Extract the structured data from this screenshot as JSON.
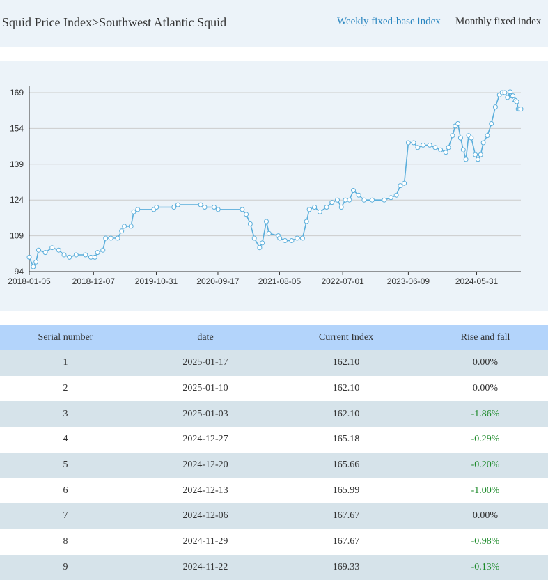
{
  "header": {
    "breadcrumb": "Squid Price Index>Southwest Atlantic Squid",
    "tabs": [
      {
        "label": "Weekly fixed-base index",
        "active": true
      },
      {
        "label": "Monthly fixed index",
        "active": false
      }
    ]
  },
  "colors": {
    "line": "#5aaedb",
    "active_tab": "#2a86c0",
    "negative": "#1d8a2a",
    "table_header": "#b3d4fb",
    "row_alt": "#d6e3ea"
  },
  "chart_data": {
    "type": "line",
    "x_start": "2018-01-05",
    "x_end": "2025-01-17",
    "x_tick_labels": [
      "2018-01-05",
      "2018-12-07",
      "2019-10-31",
      "2020-09-17",
      "2021-08-05",
      "2022-07-01",
      "2023-06-09",
      "2024-05-31"
    ],
    "y_tick_labels": [
      "94",
      "109",
      "124",
      "139",
      "154",
      "169"
    ],
    "ylim": [
      94,
      169
    ],
    "grid": true,
    "marker": "hollow-circle",
    "points": [
      [
        "2018-01-05",
        100
      ],
      [
        "2018-01-26",
        96
      ],
      [
        "2018-02-09",
        98
      ],
      [
        "2018-02-23",
        103
      ],
      [
        "2018-03-30",
        102
      ],
      [
        "2018-05-04",
        104
      ],
      [
        "2018-06-08",
        103
      ],
      [
        "2018-07-06",
        101
      ],
      [
        "2018-08-03",
        100
      ],
      [
        "2018-09-07",
        101
      ],
      [
        "2018-10-26",
        101
      ],
      [
        "2018-11-23",
        100
      ],
      [
        "2018-12-14",
        100
      ],
      [
        "2018-12-28",
        102
      ],
      [
        "2019-01-25",
        103
      ],
      [
        "2019-02-08",
        108
      ],
      [
        "2019-03-08",
        108
      ],
      [
        "2019-04-12",
        108
      ],
      [
        "2019-05-03",
        111
      ],
      [
        "2019-05-17",
        113
      ],
      [
        "2019-06-21",
        113
      ],
      [
        "2019-07-05",
        119
      ],
      [
        "2019-07-26",
        120
      ],
      [
        "2019-10-18",
        120
      ],
      [
        "2019-11-01",
        121
      ],
      [
        "2020-01-31",
        121
      ],
      [
        "2020-02-21",
        122
      ],
      [
        "2020-06-19",
        122
      ],
      [
        "2020-07-10",
        121
      ],
      [
        "2020-08-28",
        121
      ],
      [
        "2020-09-18",
        120
      ],
      [
        "2021-01-22",
        120
      ],
      [
        "2021-02-12",
        118
      ],
      [
        "2021-03-05",
        114
      ],
      [
        "2021-03-26",
        108
      ],
      [
        "2021-04-23",
        104
      ],
      [
        "2021-05-07",
        106
      ],
      [
        "2021-05-28",
        115
      ],
      [
        "2021-06-11",
        110
      ],
      [
        "2021-07-30",
        109
      ],
      [
        "2021-08-06",
        108
      ],
      [
        "2021-09-03",
        107
      ],
      [
        "2021-10-08",
        107
      ],
      [
        "2021-11-05",
        108
      ],
      [
        "2021-12-03",
        108
      ],
      [
        "2021-12-24",
        115
      ],
      [
        "2022-01-07",
        120
      ],
      [
        "2022-02-04",
        121
      ],
      [
        "2022-03-04",
        119
      ],
      [
        "2022-04-08",
        121
      ],
      [
        "2022-05-06",
        123
      ],
      [
        "2022-06-03",
        124
      ],
      [
        "2022-06-24",
        121
      ],
      [
        "2022-07-15",
        124
      ],
      [
        "2022-08-05",
        124
      ],
      [
        "2022-08-26",
        128
      ],
      [
        "2022-09-23",
        126
      ],
      [
        "2022-10-21",
        124
      ],
      [
        "2022-12-02",
        124
      ],
      [
        "2023-02-03",
        124
      ],
      [
        "2023-03-10",
        125
      ],
      [
        "2023-04-07",
        126
      ],
      [
        "2023-04-28",
        130
      ],
      [
        "2023-05-19",
        131
      ],
      [
        "2023-06-09",
        148
      ],
      [
        "2023-07-07",
        148
      ],
      [
        "2023-07-28",
        146
      ],
      [
        "2023-08-25",
        147
      ],
      [
        "2023-09-29",
        147
      ],
      [
        "2023-10-27",
        146
      ],
      [
        "2023-11-24",
        145
      ],
      [
        "2023-12-22",
        144
      ],
      [
        "2024-01-05",
        146
      ],
      [
        "2024-01-26",
        151
      ],
      [
        "2024-02-09",
        155
      ],
      [
        "2024-02-23",
        156
      ],
      [
        "2024-03-08",
        150
      ],
      [
        "2024-03-22",
        145
      ],
      [
        "2024-04-05",
        141
      ],
      [
        "2024-04-19",
        151
      ],
      [
        "2024-05-03",
        150
      ],
      [
        "2024-05-24",
        143
      ],
      [
        "2024-06-07",
        141
      ],
      [
        "2024-06-21",
        143
      ],
      [
        "2024-07-05",
        148
      ],
      [
        "2024-07-26",
        151
      ],
      [
        "2024-08-16",
        156
      ],
      [
        "2024-09-06",
        163
      ],
      [
        "2024-09-27",
        168
      ],
      [
        "2024-10-11",
        169
      ],
      [
        "2024-10-25",
        169
      ],
      [
        "2024-11-08",
        167
      ],
      [
        "2024-11-22",
        169.33
      ],
      [
        "2024-11-29",
        167.67
      ],
      [
        "2024-12-06",
        167.67
      ],
      [
        "2024-12-13",
        165.99
      ],
      [
        "2024-12-20",
        165.66
      ],
      [
        "2024-12-27",
        165.18
      ],
      [
        "2025-01-03",
        162.1
      ],
      [
        "2025-01-10",
        162.1
      ],
      [
        "2025-01-17",
        162.1
      ]
    ]
  },
  "table": {
    "headers": [
      "Serial number",
      "date",
      "Current Index",
      "Rise and fall"
    ],
    "rows": [
      {
        "serial": "1",
        "date": "2025-01-17",
        "index": "162.10",
        "change": "0.00%",
        "trend": "flat"
      },
      {
        "serial": "2",
        "date": "2025-01-10",
        "index": "162.10",
        "change": "0.00%",
        "trend": "flat"
      },
      {
        "serial": "3",
        "date": "2025-01-03",
        "index": "162.10",
        "change": "-1.86%",
        "trend": "down"
      },
      {
        "serial": "4",
        "date": "2024-12-27",
        "index": "165.18",
        "change": "-0.29%",
        "trend": "down"
      },
      {
        "serial": "5",
        "date": "2024-12-20",
        "index": "165.66",
        "change": "-0.20%",
        "trend": "down"
      },
      {
        "serial": "6",
        "date": "2024-12-13",
        "index": "165.99",
        "change": "-1.00%",
        "trend": "down"
      },
      {
        "serial": "7",
        "date": "2024-12-06",
        "index": "167.67",
        "change": "0.00%",
        "trend": "flat"
      },
      {
        "serial": "8",
        "date": "2024-11-29",
        "index": "167.67",
        "change": "-0.98%",
        "trend": "down"
      },
      {
        "serial": "9",
        "date": "2024-11-22",
        "index": "169.33",
        "change": "-0.13%",
        "trend": "down"
      }
    ]
  }
}
